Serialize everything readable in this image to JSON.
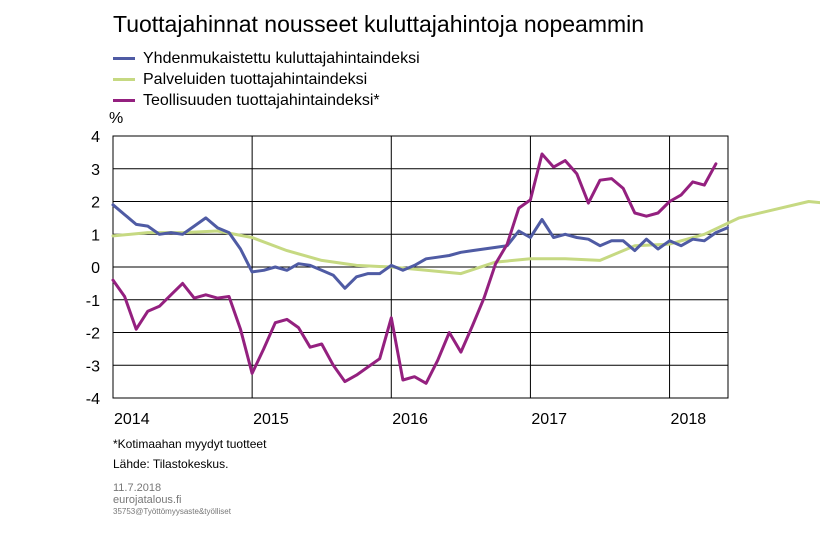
{
  "title": "Tuottajahinnat nousseet kuluttajahintoja nopeammin",
  "unit": "%",
  "footnote": "*Kotimaahan  myydyt tuotteet",
  "source": "Lähde:  Tilastokeskus.",
  "date": "11.7.2018",
  "site": "eurojatalous.fi",
  "code": "35753@Työttömyysaste&työlliset",
  "chart_data": {
    "type": "line",
    "ylim": [
      -4,
      4
    ],
    "yticks": [
      4,
      3,
      2,
      1,
      0,
      -1,
      -2,
      -3,
      -4
    ],
    "xlim": [
      2014.0,
      2018.42
    ],
    "year_ticks": [
      "2014",
      "2015",
      "2016",
      "2017",
      "2018"
    ],
    "grid": true,
    "legend_position": "top-left",
    "series": [
      {
        "name": "Yhdenmukaistettu kuluttajahintaindeksi",
        "color": "#4f5ba4",
        "start": "2014-01",
        "values": [
          1.9,
          1.6,
          1.3,
          1.25,
          1.0,
          1.05,
          1.0,
          1.25,
          1.5,
          1.2,
          1.05,
          0.55,
          -0.15,
          -0.1,
          0.0,
          -0.1,
          0.1,
          0.05,
          -0.1,
          -0.25,
          -0.65,
          -0.3,
          -0.2,
          -0.2,
          0.05,
          -0.1,
          0.05,
          0.25,
          0.3,
          0.35,
          0.45,
          0.5,
          0.55,
          0.6,
          0.65,
          1.1,
          0.9,
          1.45,
          0.9,
          1.0,
          0.9,
          0.85,
          0.65,
          0.8,
          0.8,
          0.5,
          0.85,
          0.55,
          0.8,
          0.65,
          0.85,
          0.8,
          1.05,
          1.2
        ]
      },
      {
        "name": "Palveluiden tuottajahintaindeksi",
        "color": "#c6d982",
        "start": "2014-01",
        "step_months": 3,
        "values": [
          0.95,
          1.05,
          1.05,
          1.1,
          0.9,
          0.5,
          0.2,
          0.05,
          0.0,
          -0.1,
          -0.2,
          0.15,
          0.25,
          0.25,
          0.2,
          0.65,
          0.7,
          1.0,
          1.5,
          1.75,
          2.0,
          1.9,
          1.85,
          1.85
        ]
      },
      {
        "name": "Teollisuuden tuottajahintaindeksi*",
        "color": "#94207f",
        "start": "2014-01",
        "values": [
          -0.4,
          -0.9,
          -1.9,
          -1.35,
          -1.2,
          -0.85,
          -0.5,
          -0.95,
          -0.85,
          -0.95,
          -0.9,
          -1.9,
          -3.25,
          -2.5,
          -1.7,
          -1.6,
          -1.85,
          -2.45,
          -2.35,
          -3.0,
          -3.5,
          -3.3,
          -3.05,
          -2.8,
          -1.55,
          -3.45,
          -3.35,
          -3.55,
          -2.85,
          -2.0,
          -2.6,
          -1.8,
          -0.95,
          0.1,
          0.7,
          1.8,
          2.05,
          3.45,
          3.05,
          3.25,
          2.85,
          1.95,
          2.65,
          2.7,
          2.4,
          1.65,
          1.55,
          1.65,
          2.0,
          2.2,
          2.6,
          2.5,
          3.15
        ]
      }
    ]
  }
}
